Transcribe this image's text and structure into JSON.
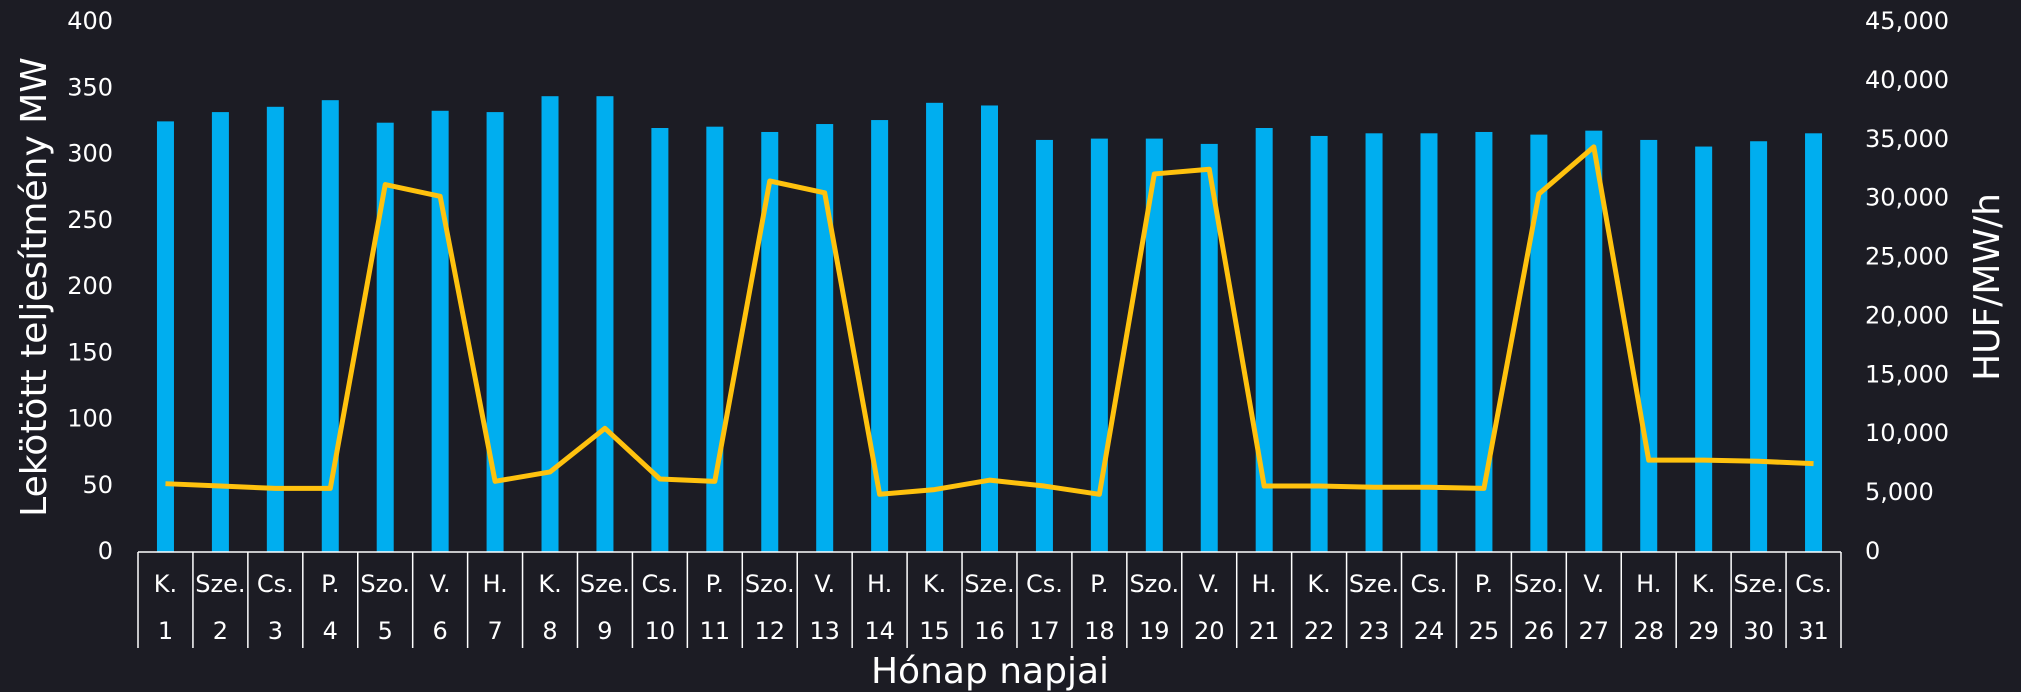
{
  "chart_data": {
    "type": "bar-line",
    "x_label": "Hónap napjai",
    "y_label": "Lekötött teljesítmény MW",
    "y2_label": "HUF/MW/h",
    "categories": [
      [
        "K.",
        "1"
      ],
      [
        "Sze.",
        "2"
      ],
      [
        "Cs.",
        "3"
      ],
      [
        "P.",
        "4"
      ],
      [
        "Szo.",
        "5"
      ],
      [
        "V.",
        "6"
      ],
      [
        "H.",
        "7"
      ],
      [
        "K.",
        "8"
      ],
      [
        "Sze.",
        "9"
      ],
      [
        "Cs.",
        "10"
      ],
      [
        "P.",
        "11"
      ],
      [
        "Szo.",
        "12"
      ],
      [
        "V.",
        "13"
      ],
      [
        "H.",
        "14"
      ],
      [
        "K.",
        "15"
      ],
      [
        "Sze.",
        "16"
      ],
      [
        "Cs.",
        "17"
      ],
      [
        "P.",
        "18"
      ],
      [
        "Szo.",
        "19"
      ],
      [
        "V.",
        "20"
      ],
      [
        "H.",
        "21"
      ],
      [
        "K.",
        "22"
      ],
      [
        "Sze.",
        "23"
      ],
      [
        "Cs.",
        "24"
      ],
      [
        "P.",
        "25"
      ],
      [
        "Szo.",
        "26"
      ],
      [
        "V.",
        "27"
      ],
      [
        "H.",
        "28"
      ],
      [
        "K.",
        "29"
      ],
      [
        "Sze.",
        "30"
      ],
      [
        "Cs.",
        "31"
      ]
    ],
    "series": [
      {
        "type": "bar",
        "color": "#00aeef",
        "values": [
          325,
          332,
          336,
          341,
          324,
          333,
          332,
          344,
          344,
          320,
          321,
          317,
          323,
          326,
          339,
          337,
          311,
          312,
          312,
          308,
          320,
          314,
          316,
          316,
          317,
          315,
          318,
          311,
          306,
          310,
          316
        ]
      },
      {
        "type": "line",
        "axis": "y2",
        "color": "#ffc20e",
        "values": [
          5800,
          5600,
          5400,
          5400,
          31200,
          30200,
          6000,
          6800,
          10500,
          6200,
          6000,
          31500,
          30500,
          4900,
          5300,
          6100,
          5600,
          4900,
          32100,
          32500,
          5600,
          5600,
          5500,
          5500,
          5400,
          30400,
          34400,
          7800,
          7800,
          7700,
          7500
        ]
      }
    ],
    "ylim": [
      0,
      400
    ],
    "yticks": [
      0,
      50,
      100,
      150,
      200,
      250,
      300,
      350,
      400
    ],
    "y2lim": [
      0,
      45000
    ],
    "y2ticks": [
      0,
      {
        "value": 5000,
        "label": "5,000"
      },
      {
        "value": 10000,
        "label": "10,000"
      },
      {
        "value": 15000,
        "label": "15,000"
      },
      {
        "value": 20000,
        "label": "20,000"
      },
      {
        "value": 25000,
        "label": "25,000"
      },
      {
        "value": 30000,
        "label": "30,000"
      },
      {
        "value": 35000,
        "label": "35,000"
      },
      {
        "value": 40000,
        "label": "40,000"
      },
      {
        "value": 45000,
        "label": "45,000"
      }
    ]
  }
}
